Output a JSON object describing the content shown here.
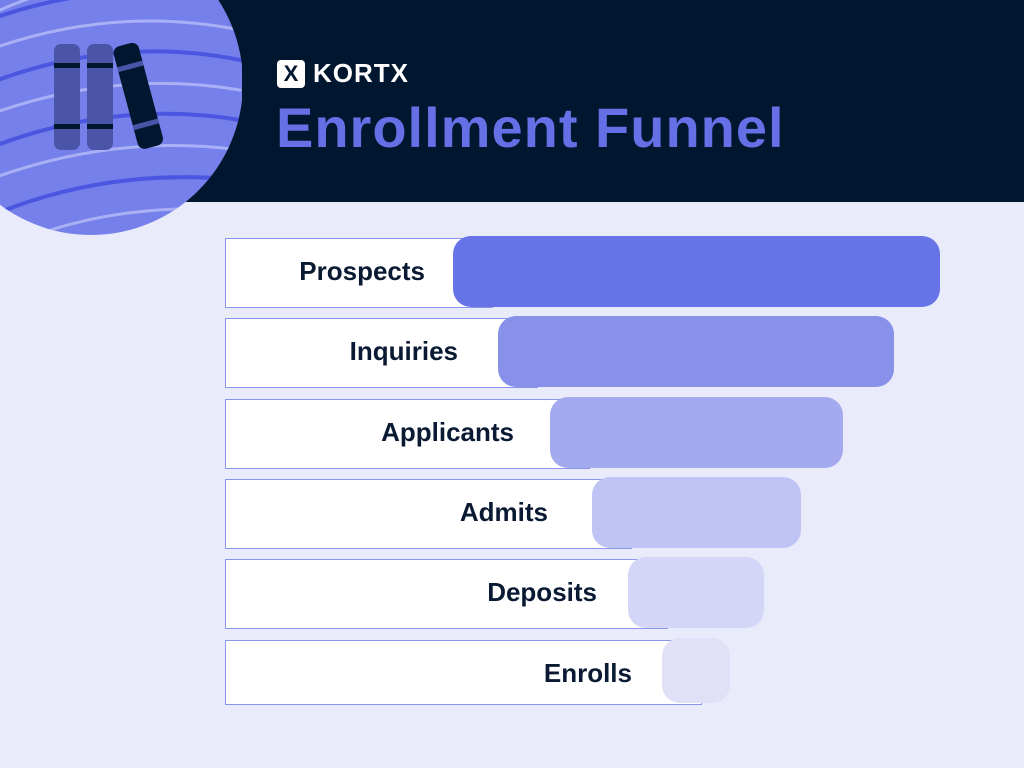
{
  "header": {
    "brand": "KORTX",
    "brand_mark": "X",
    "title": "Enrollment Funnel",
    "illustration_icon": "books-icon"
  },
  "colors": {
    "header_bg": "#01172f",
    "title": "#6570e6",
    "background": "#eaebfa"
  },
  "funnel": {
    "stages": [
      {
        "label": "Prospects",
        "color": "#6674e8"
      },
      {
        "label": "Inquiries",
        "color": "#8891ea"
      },
      {
        "label": "Applicants",
        "color": "#a4aaee"
      },
      {
        "label": "Admits",
        "color": "#c0c4f4"
      },
      {
        "label": "Deposits",
        "color": "#d3d6f6"
      },
      {
        "label": "Enrolls",
        "color": "#e0e1f6"
      }
    ]
  }
}
